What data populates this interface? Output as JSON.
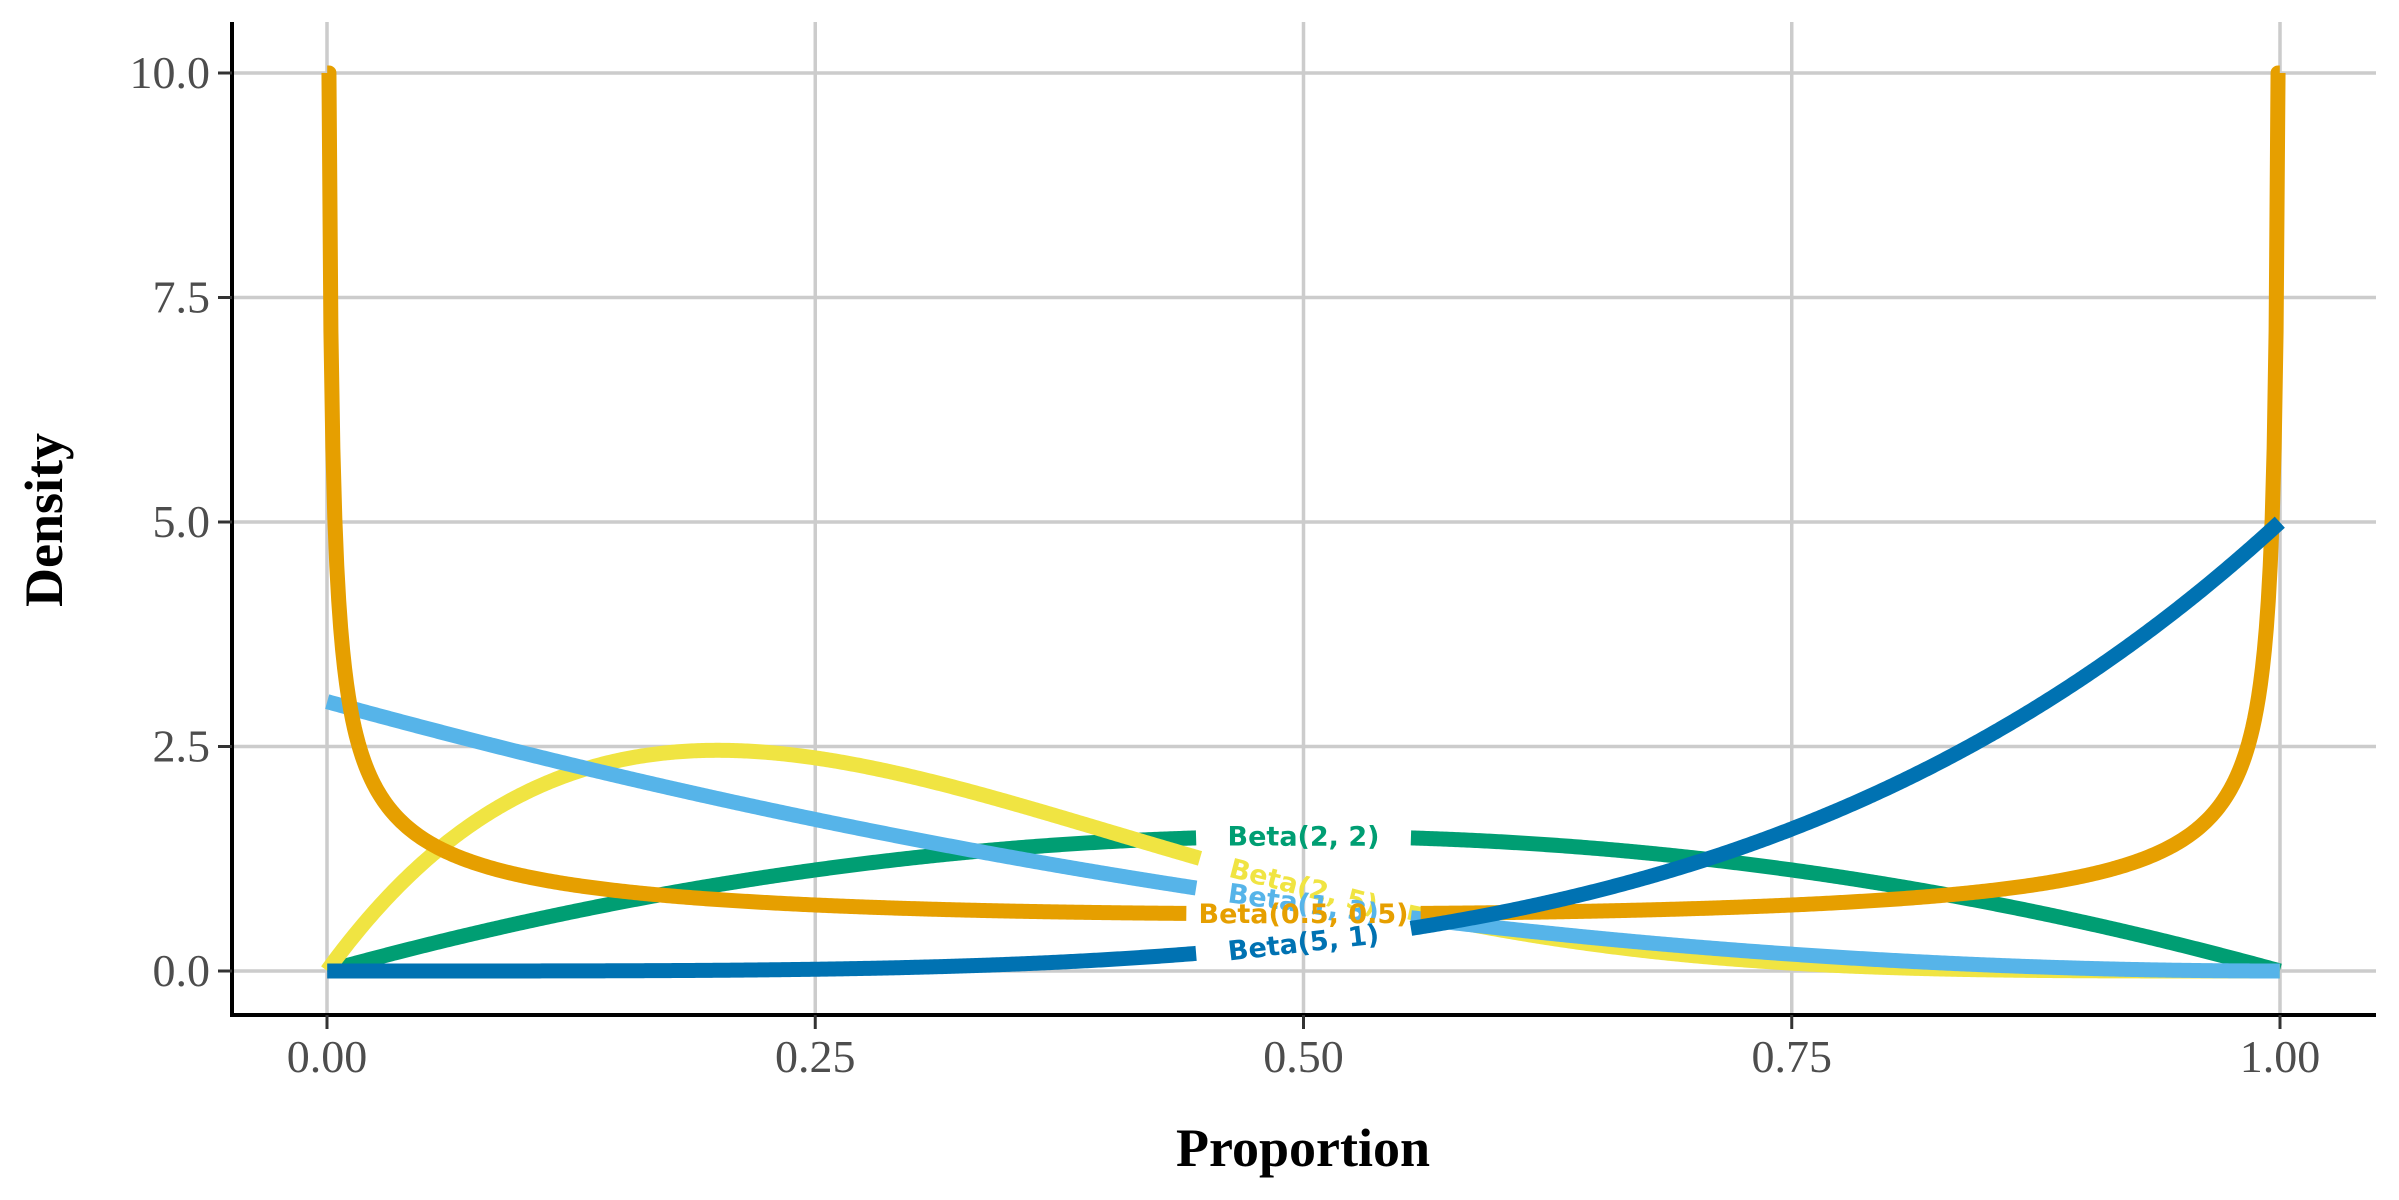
{
  "chart_data": {
    "type": "line",
    "title": "",
    "xlabel": "Proportion",
    "ylabel": "Density",
    "xlim": [
      0,
      1
    ],
    "ylim": [
      0,
      10
    ],
    "x_ticks": [
      "0.00",
      "0.25",
      "0.50",
      "0.75",
      "1.00"
    ],
    "y_ticks": [
      "0.0",
      "2.5",
      "5.0",
      "7.5",
      "10.0"
    ],
    "grid": true,
    "legend": "none (direct labels on lines)",
    "series": [
      {
        "name": "Beta(2, 2)",
        "alpha": 2,
        "beta": 2,
        "color": "#009E73",
        "label_x": 0.5
      },
      {
        "name": "Beta(2, 5)",
        "alpha": 2,
        "beta": 5,
        "color": "#F0E442",
        "label_x": 0.5
      },
      {
        "name": "Beta(1, 3)",
        "alpha": 1,
        "beta": 3,
        "color": "#56B4E9",
        "label_x": 0.5
      },
      {
        "name": "Beta(0.5, 0.5)",
        "alpha": 0.5,
        "beta": 0.5,
        "color": "#E69F00",
        "label_x": 0.5
      },
      {
        "name": "Beta(5, 1)",
        "alpha": 5,
        "beta": 1,
        "color": "#0072B2",
        "label_x": 0.5
      }
    ]
  }
}
